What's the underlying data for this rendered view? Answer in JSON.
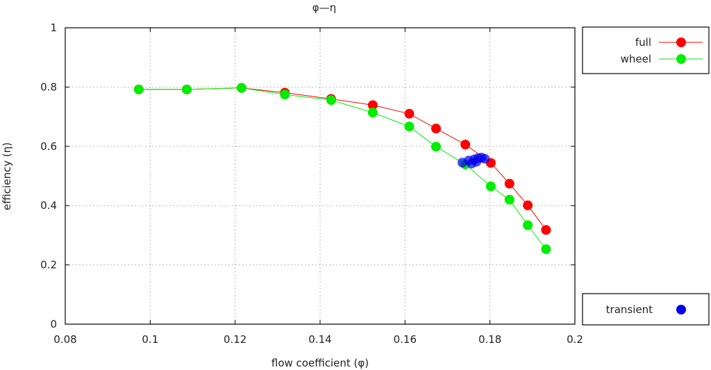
{
  "chart_data": {
    "type": "scatter",
    "title": "φ—η",
    "xlabel": "flow coefficient (φ)",
    "ylabel": "efficiency (η)",
    "xlim": [
      0.08,
      0.2
    ],
    "ylim": [
      0,
      1
    ],
    "x_ticks": [
      "0.08",
      "0.1",
      "0.12",
      "0.14",
      "0.16",
      "0.18",
      "0.2"
    ],
    "y_ticks": [
      "0",
      "0.2",
      "0.4",
      "0.6",
      "0.8",
      "1"
    ],
    "grid": true,
    "legend_placement": "right",
    "series": [
      {
        "name": "full",
        "color": "#ff0000",
        "style": "line+points",
        "points": [
          [
            0.0973,
            0.792
          ],
          [
            0.1086,
            0.792
          ],
          [
            0.1215,
            0.797
          ],
          [
            0.1317,
            0.781
          ],
          [
            0.1426,
            0.76
          ],
          [
            0.1524,
            0.739
          ],
          [
            0.161,
            0.71
          ],
          [
            0.1673,
            0.66
          ],
          [
            0.1742,
            0.606
          ],
          [
            0.1802,
            0.544
          ],
          [
            0.1846,
            0.474
          ],
          [
            0.1889,
            0.401
          ],
          [
            0.1932,
            0.318
          ]
        ]
      },
      {
        "name": "wheel",
        "color": "#00ee00",
        "style": "line+points",
        "points": [
          [
            0.0973,
            0.792
          ],
          [
            0.1086,
            0.792
          ],
          [
            0.1215,
            0.797
          ],
          [
            0.1317,
            0.775
          ],
          [
            0.1426,
            0.756
          ],
          [
            0.1524,
            0.714
          ],
          [
            0.161,
            0.667
          ],
          [
            0.1673,
            0.599
          ],
          [
            0.1742,
            0.539
          ],
          [
            0.1802,
            0.465
          ],
          [
            0.1846,
            0.42
          ],
          [
            0.1889,
            0.334
          ],
          [
            0.1932,
            0.253
          ]
        ]
      },
      {
        "name": "transient",
        "color": "#0000ee",
        "style": "points",
        "points": [
          [
            0.1735,
            0.545
          ],
          [
            0.175,
            0.552
          ],
          [
            0.1763,
            0.556
          ],
          [
            0.1772,
            0.56
          ],
          [
            0.178,
            0.562
          ],
          [
            0.1788,
            0.558
          ],
          [
            0.1768,
            0.548
          ],
          [
            0.1757,
            0.542
          ]
        ]
      }
    ]
  }
}
